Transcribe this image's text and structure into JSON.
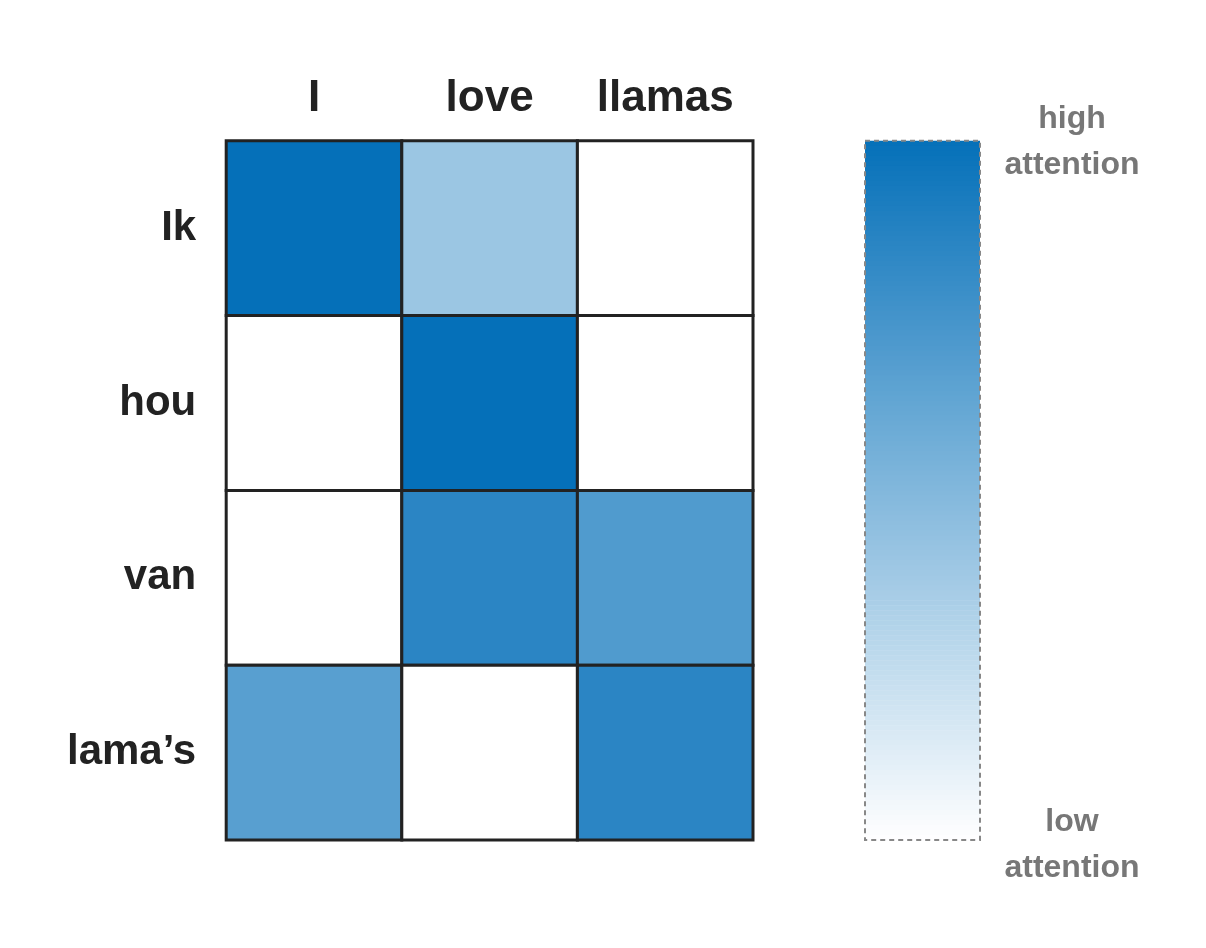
{
  "chart_data": {
    "type": "heatmap",
    "categories": [
      "I",
      "love",
      "llamas"
    ],
    "y_categories": [
      "Ik",
      "hou",
      "van",
      "lama’s"
    ],
    "cells": [
      [
        1,
        0.4,
        0
      ],
      [
        0,
        1,
        0
      ],
      [
        0,
        0.85,
        0.7
      ],
      [
        0.67,
        0,
        0.85
      ]
    ],
    "clim": [
      0,
      1
    ],
    "cticks": [
      {
        "value": 1,
        "label": "high attention"
      },
      {
        "value": 0,
        "label": "low attention"
      }
    ]
  }
}
